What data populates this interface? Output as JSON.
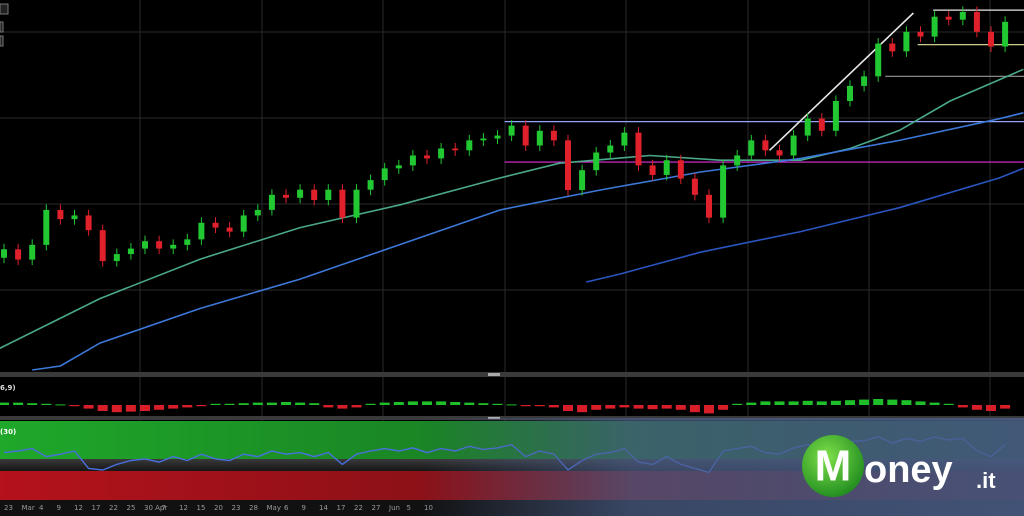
{
  "chart_data": {
    "type": "candlestick",
    "ylim": [
      0,
      100
    ],
    "candles": {
      "open": [
        30.5,
        32.8,
        30,
        34,
        43.5,
        41,
        42,
        38,
        29.6,
        31.5,
        33,
        35,
        33,
        34,
        35.5,
        40,
        38.7,
        37.6,
        42,
        43.5,
        47.6,
        46.8,
        49,
        46.2,
        49,
        41.4,
        49,
        51.6,
        54.8,
        55.6,
        58.3,
        57.5,
        60.2,
        59.7,
        62.4,
        62.9,
        63.7,
        66.4,
        61,
        65,
        62.4,
        48.9,
        54.3,
        59.1,
        61,
        64.5,
        55.6,
        53,
        57,
        52,
        47.6,
        41.4,
        55.6,
        58.3,
        62.4,
        59.7,
        58.3,
        63.7,
        68.3,
        65,
        73.1,
        77.2,
        79.8,
        88.7,
        86.6,
        91.9,
        90.6,
        96,
        95.2,
        97.3,
        91.9,
        87.9
      ],
      "high": [
        34.3,
        34.3,
        35.5,
        45,
        45,
        43.5,
        43.5,
        39.5,
        33,
        34.5,
        36.5,
        36.5,
        35.5,
        37,
        41.5,
        41.5,
        40.2,
        43.5,
        45,
        49.1,
        49.1,
        50.5,
        50.5,
        50.5,
        50.5,
        50.5,
        53.1,
        56.3,
        57.1,
        59.8,
        59.8,
        61.7,
        61.7,
        63.9,
        64.4,
        65.2,
        67.9,
        67.9,
        66.5,
        66.5,
        63.9,
        55.8,
        60.6,
        62.5,
        66,
        66,
        57.1,
        58.5,
        58.5,
        53.5,
        49.1,
        57.1,
        59.8,
        63.9,
        63.9,
        61.2,
        65.2,
        69.8,
        69.8,
        74.6,
        78.7,
        81.3,
        90.2,
        90.2,
        93.4,
        93.4,
        97.5,
        97.5,
        98.8,
        98.8,
        93.4,
        96.1
      ],
      "low": [
        29,
        28.5,
        28.5,
        32.5,
        39.5,
        39.5,
        36.5,
        28.1,
        28.1,
        30,
        31.5,
        31.5,
        31.5,
        32.5,
        34,
        37.2,
        36.1,
        36.1,
        40.5,
        42,
        45.3,
        45.3,
        44.7,
        44.7,
        39.9,
        39.9,
        47.5,
        50.1,
        53.3,
        54.1,
        56,
        56,
        58.2,
        58.2,
        60.9,
        61.4,
        62.2,
        59.5,
        59.5,
        60.9,
        47.4,
        47.4,
        52.8,
        57.6,
        59.5,
        54.1,
        51.5,
        51.5,
        50.5,
        46.1,
        39.9,
        39.9,
        54.1,
        56.8,
        58.2,
        56.8,
        56.8,
        62.2,
        63.5,
        63.5,
        71.6,
        75.7,
        78.3,
        85.1,
        85.1,
        89.1,
        89.1,
        93.7,
        93.7,
        90.4,
        86.4,
        86.4
      ],
      "close": [
        32.8,
        30,
        34,
        43.5,
        41,
        42,
        38,
        29.6,
        31.5,
        33,
        35,
        33,
        34,
        35.5,
        40,
        38.7,
        37.6,
        42,
        43.5,
        47.6,
        46.8,
        49,
        46.2,
        49,
        41.4,
        49,
        51.6,
        54.8,
        55.6,
        58.3,
        57.5,
        60.2,
        59.7,
        62.4,
        62.9,
        63.7,
        66.4,
        61,
        65,
        62.4,
        48.9,
        54.3,
        59.1,
        61,
        64.5,
        55.6,
        53,
        57,
        52,
        47.6,
        41.4,
        55.6,
        58.3,
        62.4,
        59.7,
        58.3,
        63.7,
        68.3,
        65,
        73.1,
        77.2,
        79.8,
        88.7,
        86.6,
        91.9,
        90.6,
        96,
        95.2,
        97.3,
        91.9,
        87.9,
        94.6
      ],
      "up_color": "#22c832",
      "down_color": "#e0202a"
    },
    "series": [
      {
        "color": "#4aa88a",
        "x": [
          -0.3,
          6.8,
          13.9,
          21,
          28.1,
          35.2,
          39.4,
          45.8,
          50.8,
          56.5,
          60,
          63.5,
          67.1,
          72.3
        ],
        "values": [
          5.9,
          19.4,
          30.1,
          38.7,
          44.9,
          52.2,
          56.2,
          58.3,
          57,
          57,
          60.2,
          65.1,
          73.1,
          81.7
        ]
      },
      {
        "color": "#3c78d8",
        "x": [
          2,
          4,
          6.8,
          13.9,
          21,
          28.1,
          35.2,
          42.3,
          49.4,
          56.5,
          63.5,
          70.6,
          72.3
        ],
        "values": [
          0,
          1.1,
          7.3,
          16.7,
          24.7,
          34.1,
          43.5,
          48.9,
          53.8,
          57.5,
          62.4,
          68.3,
          69.9
        ]
      },
      {
        "color": "#2a55c0",
        "x": [
          41.3,
          43.7,
          49.4,
          56.5,
          63.5,
          70.6,
          72.3
        ],
        "values": [
          23.9,
          26.1,
          32,
          37.6,
          44.1,
          52.2,
          54.8
        ]
      },
      {
        "color": "#e8e8e8",
        "x": [
          54.3,
          64.5
        ],
        "values": [
          59.7,
          97
        ]
      }
    ],
    "levels": [
      {
        "value": 67.5,
        "from": 35.5,
        "color": "#8fa3ff"
      },
      {
        "value": 56.5,
        "from": 35.5,
        "color": "#e030e0"
      },
      {
        "value": 79.8,
        "from": 62.5,
        "color": "#9a9a9a"
      },
      {
        "value": 97.8,
        "from": 65.9,
        "color": "#e8e8e8"
      },
      {
        "value": 88.4,
        "from": 64.8,
        "color": "#e6e6a0"
      }
    ],
    "macd": {
      "label": "6,9)",
      "ylim": [
        -1,
        1
      ],
      "values": [
        0.2,
        0.2,
        0.15,
        0.1,
        0.05,
        -0.1,
        -0.3,
        -0.5,
        -0.6,
        -0.55,
        -0.5,
        -0.4,
        -0.3,
        -0.2,
        -0.1,
        0.1,
        0.1,
        0.15,
        0.2,
        0.2,
        0.25,
        0.2,
        0.15,
        -0.2,
        -0.3,
        -0.2,
        0.1,
        0.2,
        0.25,
        0.3,
        0.3,
        0.3,
        0.25,
        0.2,
        0.15,
        0.1,
        0.05,
        -0.1,
        -0.1,
        -0.2,
        -0.5,
        -0.6,
        -0.4,
        -0.3,
        -0.2,
        -0.3,
        -0.35,
        -0.3,
        -0.4,
        -0.6,
        -0.7,
        -0.4,
        0.1,
        0.2,
        0.3,
        0.3,
        0.3,
        0.35,
        0.3,
        0.35,
        0.4,
        0.45,
        0.5,
        0.45,
        0.4,
        0.3,
        0.2,
        0.1,
        -0.2,
        -0.4,
        -0.5,
        -0.3
      ]
    },
    "rsi": {
      "label": "(30)",
      "ylim": [
        0,
        100
      ],
      "color": "#4a6fe0",
      "values": [
        60,
        62,
        65,
        55,
        58,
        62,
        40,
        38,
        45,
        50,
        52,
        48,
        55,
        50,
        58,
        52,
        50,
        58,
        55,
        62,
        58,
        60,
        55,
        60,
        45,
        58,
        62,
        65,
        62,
        66,
        60,
        65,
        62,
        68,
        64,
        66,
        70,
        55,
        62,
        58,
        38,
        50,
        58,
        60,
        65,
        48,
        45,
        55,
        45,
        40,
        35,
        62,
        65,
        68,
        60,
        58,
        66,
        70,
        62,
        72,
        74,
        75,
        80,
        72,
        78,
        74,
        80,
        76,
        78,
        62,
        55,
        70
      ]
    },
    "x_labels": [
      "23",
      "Mar",
      "4",
      "9",
      "12",
      "17",
      "22",
      "25",
      "30 Apr",
      "7",
      "12",
      "15",
      "20",
      "23",
      "28",
      "May",
      "6",
      "9",
      "14",
      "17",
      "22",
      "27",
      "Jun",
      "5",
      "10"
    ],
    "watermark": {
      "initial": "M",
      "text": "oney",
      "suffix": ".it"
    }
  }
}
